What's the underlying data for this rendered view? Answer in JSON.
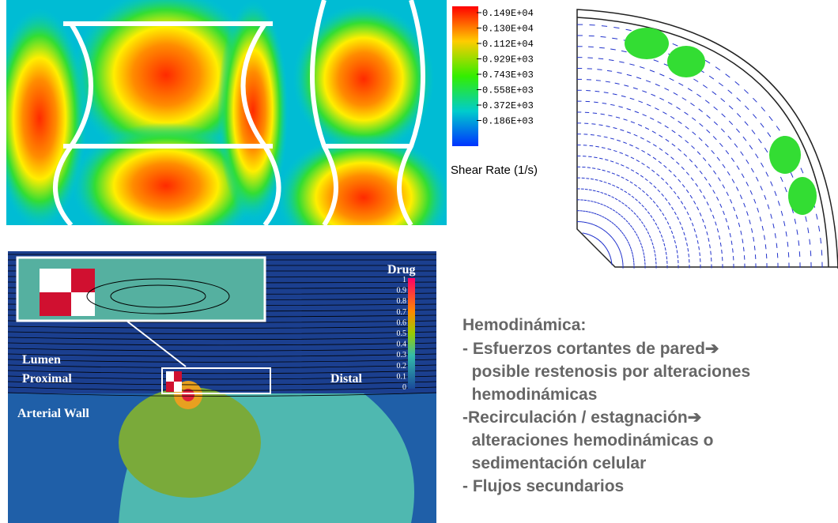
{
  "shear_panel": {
    "legend_labels": [
      "0.149E+04",
      "0.130E+04",
      "0.112E+04",
      "0.929E+03",
      "0.743E+03",
      "0.558E+03",
      "0.372E+03",
      "0.186E+03"
    ],
    "legend_title": "Shear Rate (1/s)"
  },
  "drug_panel": {
    "legend_title": "Drug",
    "legend_ticks": [
      "1",
      "0.9",
      "0.8",
      "0.7",
      "0.6",
      "0.5",
      "0.4",
      "0.3",
      "0.2",
      "0.1",
      "0"
    ],
    "lumen": "Lumen",
    "proximal": "Proximal",
    "distal": "Distal",
    "wall": "Arterial Wall"
  },
  "text": {
    "heading": "Hemodinámica:",
    "lines": [
      "- Esfuerzos cortantes de pared➔",
      "  posible restenosis por alteraciones",
      "  hemodinámicas",
      "-Recirculación / estagnación➔",
      "  alteraciones hemodinámicas o",
      "  sedimentación celular",
      "- Flujos secundarios"
    ]
  }
}
